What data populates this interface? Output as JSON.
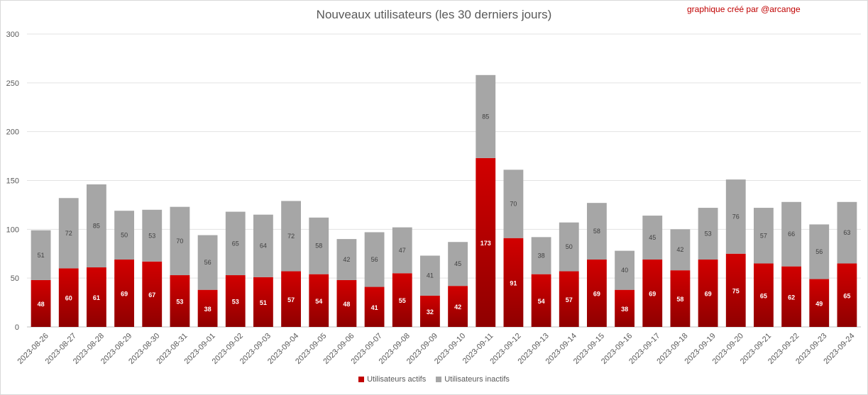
{
  "header": {
    "title": "Nouveaux utilisateurs  (les 30 derniers  jours)",
    "credit": "graphique créé par @arcange"
  },
  "chart_data": {
    "type": "bar",
    "stacked": true,
    "title": "Nouveaux utilisateurs  (les 30 derniers  jours)",
    "xlabel": "",
    "ylabel": "",
    "ylim": [
      0,
      300
    ],
    "yticks": [
      0,
      50,
      100,
      150,
      200,
      250,
      300
    ],
    "grid": true,
    "legend_position": "bottom",
    "categories": [
      "2023-08-26",
      "2023-08-27",
      "2023-08-28",
      "2023-08-29",
      "2023-08-30",
      "2023-08-31",
      "2023-09-01",
      "2023-09-02",
      "2023-09-03",
      "2023-09-04",
      "2023-09-05",
      "2023-09-06",
      "2023-09-07",
      "2023-09-08",
      "2023-09-09",
      "2023-09-10",
      "2023-09-11",
      "2023-09-12",
      "2023-09-13",
      "2023-09-14",
      "2023-09-15",
      "2023-09-16",
      "2023-09-17",
      "2023-09-18",
      "2023-09-19",
      "2023-09-20",
      "2023-09-21",
      "2023-09-22",
      "2023-09-23",
      "2023-09-24"
    ],
    "series": [
      {
        "name": "Utilisateurs actifs",
        "color": "#c00000",
        "values": [
          48,
          60,
          61,
          69,
          67,
          53,
          38,
          53,
          51,
          57,
          54,
          48,
          41,
          55,
          32,
          42,
          173,
          91,
          54,
          57,
          69,
          38,
          69,
          58,
          69,
          75,
          65,
          62,
          49,
          65
        ]
      },
      {
        "name": "Utilisateurs inactifs",
        "color": "#a6a6a6",
        "values": [
          51,
          72,
          85,
          50,
          53,
          70,
          56,
          65,
          64,
          72,
          58,
          42,
          56,
          47,
          41,
          45,
          85,
          70,
          38,
          50,
          58,
          40,
          45,
          42,
          53,
          76,
          57,
          66,
          56,
          63
        ]
      }
    ]
  }
}
